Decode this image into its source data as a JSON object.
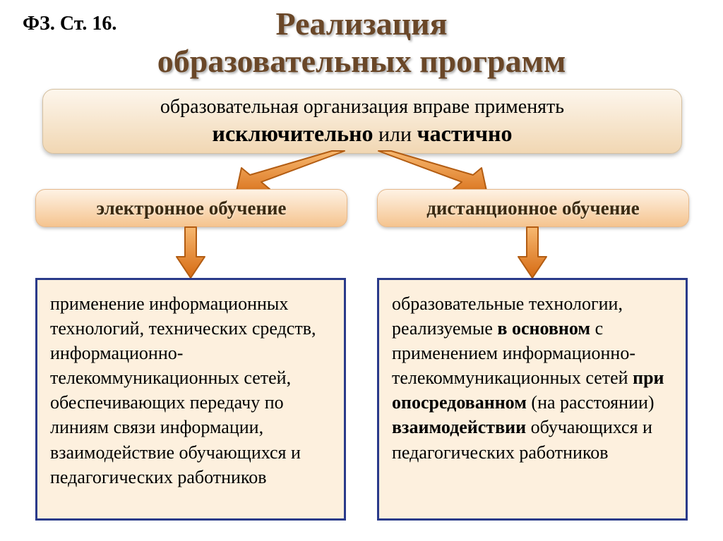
{
  "ref_label": "ФЗ. Ст. 16.",
  "title_line1": "Реализация",
  "title_line2": "образовательных программ",
  "title_color": "#6a4728",
  "top_box": {
    "line1": "образовательная организация вправе применять",
    "line2_pre": "исключительно",
    "line2_mid": " или  ",
    "line2_post": "частично",
    "bg_top": "#fdf6ec",
    "bg_bot": "#f1d7b3"
  },
  "arrow_color_fill": "#e88b2e",
  "arrow_color_stroke": "#b25c12",
  "subs": {
    "left": {
      "label": "электронное обучение"
    },
    "right": {
      "label": "дистанционное  обучение"
    },
    "text_color": "#3a2a12",
    "bg_top": "#fef2e4",
    "bg_bot": "#f5c48f"
  },
  "content": {
    "border_color": "#2a3a8a",
    "bg_color": "#fdf0de",
    "left_html": "применение информационных технологий, технических средств, информационно-телекоммуникационных сетей, обеспечивающих передачу по линиям связи информации, взаимодействие обучающихся и педагогических работников",
    "right_html": "образовательные технологии, реализуемые <b>в основном</b> с применением информационно-телекоммуникационных сетей <b>при опосредованном</b> (на расстоянии) <b>взаимодействии</b> обучающихся и педагогических работников"
  }
}
